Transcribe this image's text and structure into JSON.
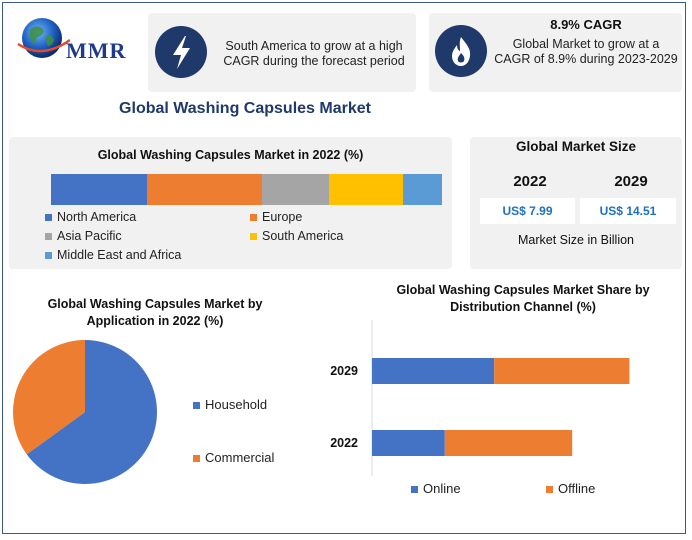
{
  "logo": {
    "text": "MMR"
  },
  "info_cards": [
    {
      "icon": "lightning-icon",
      "title": "",
      "text": "South America to grow at a high CAGR during the forecast period"
    },
    {
      "icon": "flame-icon",
      "title": "8.9% CAGR",
      "text": "Global Market to grow at a CAGR of 8.9% during 2023-2029"
    }
  ],
  "page_title": "Global Washing Capsules Market",
  "market_size": {
    "title": "Global Market Size",
    "years": [
      "2022",
      "2029"
    ],
    "values": [
      "US$ 7.99",
      "US$ 14.51"
    ],
    "caption": "Market Size in Billion"
  },
  "colors": {
    "accent": "#1f3a6a",
    "blue": "#4472c4",
    "orange": "#ed7d31",
    "gray": "#a5a5a5",
    "yellow": "#ffc000",
    "lightblue": "#5b9bd5"
  },
  "chart_data": [
    {
      "type": "bar",
      "orientation": "horizontal-stacked",
      "title": "Global Washing Capsules Market in 2022 (%)",
      "series": [
        {
          "name": "North America",
          "values": [
            24.5
          ],
          "color": "#4472c4"
        },
        {
          "name": "Europe",
          "values": [
            29.5
          ],
          "color": "#ed7d31"
        },
        {
          "name": "Asia Pacific",
          "values": [
            17
          ],
          "color": "#a5a5a5"
        },
        {
          "name": "South America",
          "values": [
            19
          ],
          "color": "#ffc000"
        },
        {
          "name": "Middle East and Africa",
          "values": [
            10
          ],
          "color": "#5b9bd5"
        }
      ],
      "legend": "bottom"
    },
    {
      "type": "pie",
      "title": "Global Washing Capsules Market by Application in 2022 (%)",
      "labels": [
        "Household",
        "Commercial"
      ],
      "values": [
        65,
        35
      ],
      "colors": [
        "#4472c4",
        "#ed7d31"
      ],
      "legend": "right"
    },
    {
      "type": "bar",
      "orientation": "horizontal-stacked",
      "title": "Global Washing Capsules Market Share by Distribution Channel (%)",
      "categories": [
        "2029",
        "2022"
      ],
      "series": [
        {
          "name": "Online",
          "values": [
            47,
            28
          ],
          "color": "#4472c4"
        },
        {
          "name": "Offline",
          "values": [
            52,
            49
          ],
          "color": "#ed7d31"
        }
      ],
      "xlim": [
        0,
        100
      ],
      "legend": "bottom"
    }
  ]
}
